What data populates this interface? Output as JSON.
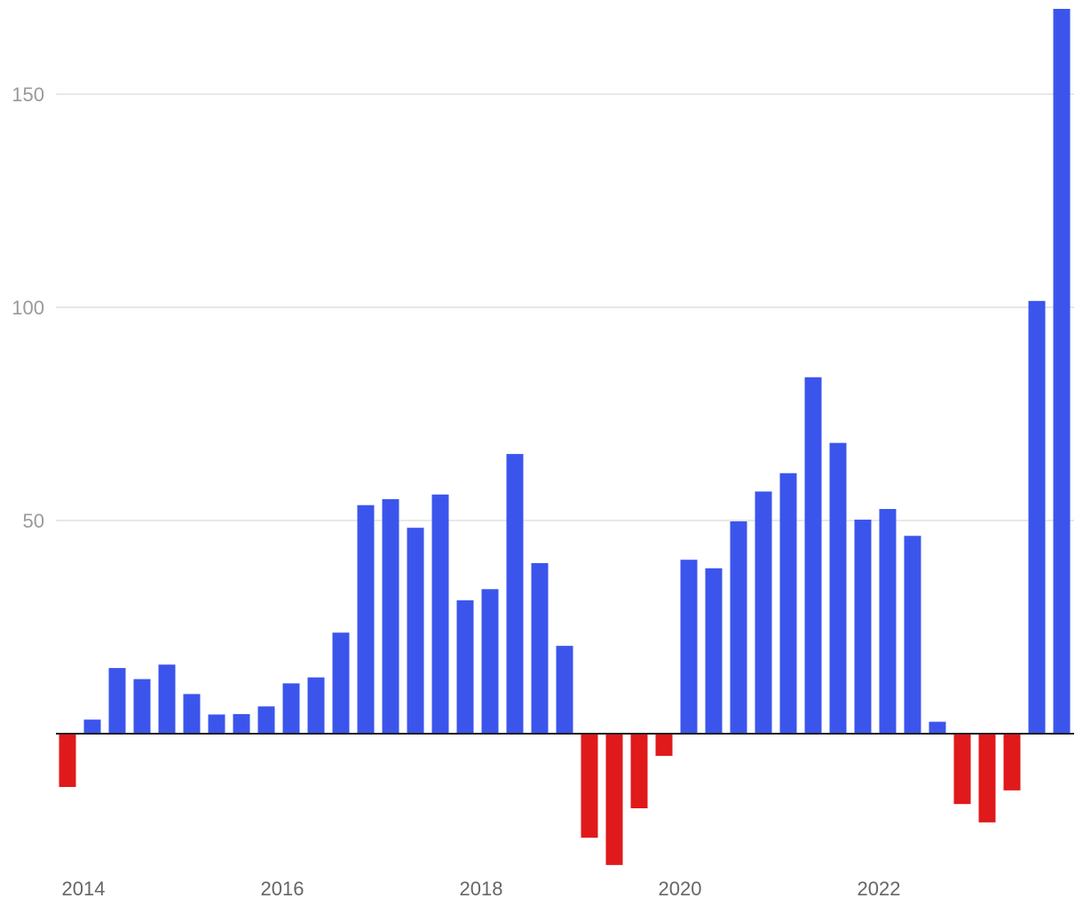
{
  "chart_data": {
    "type": "bar",
    "title": "",
    "xlabel": "",
    "ylabel": "",
    "ylim": [
      -31,
      170
    ],
    "y_ticks": [
      50,
      100,
      150
    ],
    "y_tick_labels": [
      "50",
      "100",
      "150"
    ],
    "x_ticks": [
      "2014",
      "2016",
      "2018",
      "2020",
      "2022"
    ],
    "grid": true,
    "colors": {
      "positive": "#3b55ec",
      "negative": "#e0191b",
      "grid": "#e1e1e1",
      "baseline": "#222222"
    },
    "categories": [
      "2013 Q4",
      "2014 Q1",
      "2014 Q2",
      "2014 Q3",
      "2014 Q4",
      "2015 Q1",
      "2015 Q2",
      "2015 Q3",
      "2015 Q4",
      "2016 Q1",
      "2016 Q2",
      "2016 Q3",
      "2016 Q4",
      "2017 Q1",
      "2017 Q2",
      "2017 Q3",
      "2017 Q4",
      "2018 Q1",
      "2018 Q2",
      "2018 Q3",
      "2018 Q4",
      "2019 Q1",
      "2019 Q2",
      "2019 Q3",
      "2019 Q4",
      "2020 Q1",
      "2020 Q2",
      "2020 Q3",
      "2020 Q4",
      "2021 Q1",
      "2021 Q2",
      "2021 Q3",
      "2021 Q4",
      "2022 Q1",
      "2022 Q2",
      "2022 Q3",
      "2022 Q4",
      "2023 Q1",
      "2023 Q2",
      "2023 Q3",
      "2023 Q4"
    ],
    "values": [
      -12.5,
      3.3,
      15.4,
      12.8,
      16.2,
      9.3,
      4.5,
      4.6,
      6.4,
      11.8,
      13.2,
      23.7,
      53.6,
      55.0,
      48.3,
      56.1,
      31.3,
      33.9,
      65.6,
      40.0,
      20.6,
      -24.4,
      -30.8,
      -17.5,
      -5.2,
      40.8,
      38.8,
      49.8,
      56.8,
      61.1,
      83.6,
      68.2,
      50.2,
      52.7,
      46.4,
      2.8,
      -16.5,
      -20.8,
      -13.3,
      101.5,
      170.0
    ]
  }
}
